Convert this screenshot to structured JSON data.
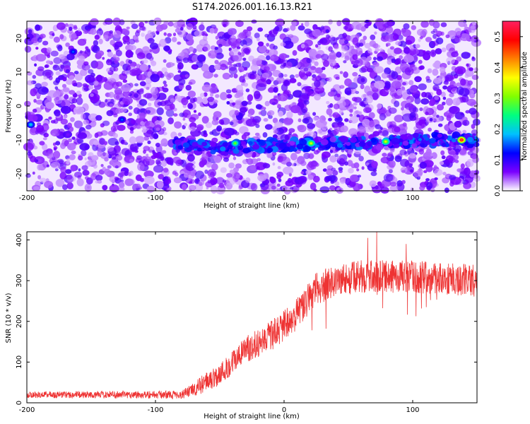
{
  "title": "S174.2026.001.16.13.R21",
  "chart_data": [
    {
      "type": "heatmap",
      "name": "spectrogram",
      "xlabel": "Height of straight line (km)",
      "ylabel": "Frequency (Hz)",
      "xlim": [
        -200,
        150
      ],
      "ylim": [
        -25,
        25
      ],
      "xticks": [
        -200,
        -100,
        0,
        100
      ],
      "xtick_labels": [
        "-200",
        "-100",
        "0",
        "100"
      ],
      "yticks": [
        20,
        10,
        0,
        -10,
        -20
      ],
      "ytick_labels": [
        "20",
        "10",
        "0",
        "-10",
        "-20"
      ],
      "colorbar": {
        "label": "Normalized spectral amplitude",
        "range": [
          0.0,
          0.55
        ],
        "ticks": [
          0.0,
          0.1,
          0.2,
          0.3,
          0.4,
          0.5
        ],
        "tick_labels": [
          "0.0",
          "0.1",
          "0.2",
          "0.3",
          "0.4",
          "0.5"
        ],
        "colors": [
          "#ffffff",
          "#7a00ff",
          "#0000ff",
          "#00c0ff",
          "#00ff80",
          "#80ff00",
          "#ffff00",
          "#ff8000",
          "#ff0000",
          "#ff2060"
        ]
      },
      "background_amplitude": 0.05,
      "track": {
        "description_points": [
          {
            "x": -85,
            "y": -11
          },
          {
            "x": -45,
            "y": -12.5
          },
          {
            "x": -20,
            "y": -11.5
          },
          {
            "x": 0,
            "y": -11.5
          },
          {
            "x": 40,
            "y": -11
          },
          {
            "x": 80,
            "y": -10.5
          },
          {
            "x": 120,
            "y": -10
          },
          {
            "x": 150,
            "y": -10
          }
        ]
      },
      "hotspots": [
        {
          "x": -38,
          "y": -11,
          "amplitude": 0.3
        },
        {
          "x": 21,
          "y": -11,
          "amplitude": 0.35
        },
        {
          "x": 79,
          "y": -10.5,
          "amplitude": 0.35
        },
        {
          "x": 138,
          "y": -10,
          "amplitude": 0.55
        },
        {
          "x": -197,
          "y": -5.5,
          "amplitude": 0.2
        },
        {
          "x": -126,
          "y": -4,
          "amplitude": 0.15
        },
        {
          "x": -164,
          "y": 16,
          "amplitude": 0.15
        }
      ]
    },
    {
      "type": "line",
      "name": "snr",
      "xlabel": "Height of straight line (km)",
      "ylabel": "SNR (10 * v/v)",
      "xlim": [
        -200,
        150
      ],
      "ylim": [
        0,
        420
      ],
      "xticks": [
        -200,
        -100,
        0,
        100
      ],
      "xtick_labels": [
        "-200",
        "-100",
        "0",
        "100"
      ],
      "yticks": [
        0,
        100,
        200,
        300,
        400
      ],
      "ytick_labels": [
        "0",
        "100",
        "200",
        "300",
        "400"
      ],
      "color": "#ee3333",
      "series": [
        {
          "name": "SNR",
          "trend": [
            {
              "x": -200,
              "y": 20
            },
            {
              "x": -80,
              "y": 20
            },
            {
              "x": -72,
              "y": 30
            },
            {
              "x": -50,
              "y": 70
            },
            {
              "x": -30,
              "y": 130
            },
            {
              "x": -10,
              "y": 165
            },
            {
              "x": 5,
              "y": 200
            },
            {
              "x": 15,
              "y": 240
            },
            {
              "x": 25,
              "y": 280
            },
            {
              "x": 40,
              "y": 300
            },
            {
              "x": 60,
              "y": 310
            },
            {
              "x": 100,
              "y": 310
            },
            {
              "x": 150,
              "y": 300
            }
          ],
          "noise_amplitude": [
            {
              "x": -200,
              "y": 8
            },
            {
              "x": -80,
              "y": 10
            },
            {
              "x": -60,
              "y": 25
            },
            {
              "x": 0,
              "y": 40
            },
            {
              "x": 40,
              "y": 40
            },
            {
              "x": 150,
              "y": 40
            }
          ],
          "peak_values": [
            {
              "x": 72,
              "y": 420
            },
            {
              "x": 65,
              "y": 405
            },
            {
              "x": 95,
              "y": 390
            }
          ]
        }
      ]
    }
  ]
}
